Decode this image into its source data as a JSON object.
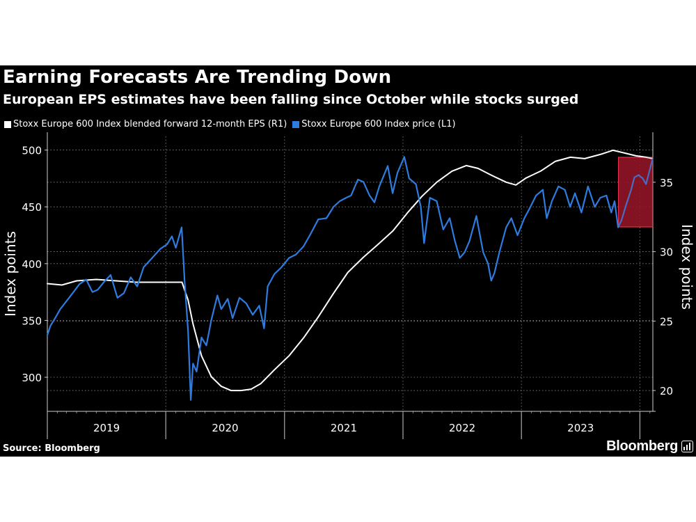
{
  "header": {
    "title": "Earning Forecasts Are Trending Down",
    "subtitle": "European EPS estimates have been falling since October while stocks surged"
  },
  "legend": {
    "items": [
      {
        "label": "Stoxx Europe 600 Index blended forward 12-month EPS (R1)",
        "color": "#ffffff"
      },
      {
        "label": "Stoxx Europe 600 Index price (L1)",
        "color": "#2e7ce0"
      }
    ]
  },
  "footer": {
    "source": "Source: Bloomberg",
    "brand": "Bloomberg",
    "brand_icon": "bar-chart-logo-icon"
  },
  "colors": {
    "background": "#000000",
    "eps_line": "#ffffff",
    "price_line": "#2e7ce0",
    "highlight_fill": "#8b1022",
    "highlight_border": "#e8324a",
    "grid": "#8a8a8a"
  },
  "chart_data": {
    "type": "line",
    "title": "Earning Forecasts Are Trending Down",
    "subtitle": "European EPS estimates have been falling since October while stocks surged",
    "x_axis": {
      "type": "date",
      "range": [
        "2019-01-01",
        "2024-02-10"
      ],
      "tick_labels": [
        "2019",
        "2020",
        "2021",
        "2022",
        "2023"
      ]
    },
    "y_left": {
      "label": "Index points",
      "ticks": [
        300,
        350,
        400,
        450,
        500
      ],
      "range": [
        270,
        512
      ]
    },
    "y_right": {
      "label": "Index points",
      "ticks": [
        20,
        25,
        30,
        35
      ],
      "range": [
        18.5,
        38.3
      ]
    },
    "grid": "dotted",
    "legend_position": "top-left",
    "highlight": {
      "from": "2023-10-27",
      "to": "2024-02-09"
    },
    "series": [
      {
        "name": "Stoxx Europe 600 Index blended forward 12-month EPS (R1)",
        "axis": "right",
        "color": "#ffffff",
        "points": [
          [
            "2019-01-01",
            27.7
          ],
          [
            "2019-02-15",
            27.6
          ],
          [
            "2019-04-01",
            27.9
          ],
          [
            "2019-06-01",
            28.0
          ],
          [
            "2019-08-01",
            27.9
          ],
          [
            "2019-10-01",
            27.8
          ],
          [
            "2019-12-01",
            27.8
          ],
          [
            "2020-01-15",
            27.8
          ],
          [
            "2020-02-20",
            27.8
          ],
          [
            "2020-03-10",
            26.5
          ],
          [
            "2020-03-25",
            24.8
          ],
          [
            "2020-04-20",
            22.5
          ],
          [
            "2020-05-20",
            21.0
          ],
          [
            "2020-06-20",
            20.3
          ],
          [
            "2020-07-20",
            20.0
          ],
          [
            "2020-08-20",
            20.0
          ],
          [
            "2020-09-20",
            20.1
          ],
          [
            "2020-10-20",
            20.5
          ],
          [
            "2020-12-01",
            21.5
          ],
          [
            "2021-01-15",
            22.5
          ],
          [
            "2021-03-01",
            23.8
          ],
          [
            "2021-04-15",
            25.3
          ],
          [
            "2021-06-01",
            27.0
          ],
          [
            "2021-07-15",
            28.5
          ],
          [
            "2021-09-01",
            29.6
          ],
          [
            "2021-10-15",
            30.5
          ],
          [
            "2021-12-01",
            31.5
          ],
          [
            "2022-01-15",
            32.8
          ],
          [
            "2022-03-01",
            34.0
          ],
          [
            "2022-04-15",
            35.0
          ],
          [
            "2022-06-01",
            35.8
          ],
          [
            "2022-07-15",
            36.2
          ],
          [
            "2022-08-20",
            36.0
          ],
          [
            "2022-10-01",
            35.5
          ],
          [
            "2022-11-15",
            35.0
          ],
          [
            "2022-12-15",
            34.8
          ],
          [
            "2023-01-15",
            35.3
          ],
          [
            "2023-03-01",
            35.8
          ],
          [
            "2023-04-15",
            36.5
          ],
          [
            "2023-06-01",
            36.8
          ],
          [
            "2023-07-15",
            36.7
          ],
          [
            "2023-09-01",
            37.0
          ],
          [
            "2023-10-10",
            37.3
          ],
          [
            "2023-11-15",
            37.1
          ],
          [
            "2023-12-20",
            36.9
          ],
          [
            "2024-01-20",
            36.8
          ],
          [
            "2024-02-09",
            36.7
          ]
        ]
      },
      {
        "name": "Stoxx Europe 600 Index price (L1)",
        "axis": "left",
        "color": "#2e7ce0",
        "points": [
          [
            "2019-01-01",
            337
          ],
          [
            "2019-01-10",
            345
          ],
          [
            "2019-01-25",
            352
          ],
          [
            "2019-02-10",
            360
          ],
          [
            "2019-03-01",
            367
          ],
          [
            "2019-03-20",
            374
          ],
          [
            "2019-04-10",
            382
          ],
          [
            "2019-05-01",
            386
          ],
          [
            "2019-05-20",
            375
          ],
          [
            "2019-06-05",
            377
          ],
          [
            "2019-06-25",
            384
          ],
          [
            "2019-07-15",
            390
          ],
          [
            "2019-08-05",
            370
          ],
          [
            "2019-08-25",
            374
          ],
          [
            "2019-09-15",
            388
          ],
          [
            "2019-10-05",
            380
          ],
          [
            "2019-10-25",
            397
          ],
          [
            "2019-11-20",
            405
          ],
          [
            "2019-12-15",
            413
          ],
          [
            "2020-01-05",
            417
          ],
          [
            "2020-01-20",
            424
          ],
          [
            "2020-02-01",
            414
          ],
          [
            "2020-02-19",
            432
          ],
          [
            "2020-02-28",
            385
          ],
          [
            "2020-03-10",
            340
          ],
          [
            "2020-03-18",
            280
          ],
          [
            "2020-03-25",
            312
          ],
          [
            "2020-04-05",
            305
          ],
          [
            "2020-04-20",
            335
          ],
          [
            "2020-05-05",
            328
          ],
          [
            "2020-05-20",
            350
          ],
          [
            "2020-06-08",
            372
          ],
          [
            "2020-06-20",
            360
          ],
          [
            "2020-07-10",
            369
          ],
          [
            "2020-07-25",
            352
          ],
          [
            "2020-08-15",
            370
          ],
          [
            "2020-09-05",
            365
          ],
          [
            "2020-09-25",
            355
          ],
          [
            "2020-10-15",
            363
          ],
          [
            "2020-10-30",
            343
          ],
          [
            "2020-11-10",
            380
          ],
          [
            "2020-12-01",
            391
          ],
          [
            "2020-12-20",
            396
          ],
          [
            "2021-01-15",
            405
          ],
          [
            "2021-02-05",
            408
          ],
          [
            "2021-02-28",
            415
          ],
          [
            "2021-03-20",
            425
          ],
          [
            "2021-04-15",
            439
          ],
          [
            "2021-05-10",
            440
          ],
          [
            "2021-06-01",
            450
          ],
          [
            "2021-06-20",
            455
          ],
          [
            "2021-07-10",
            458
          ],
          [
            "2021-07-25",
            460
          ],
          [
            "2021-08-15",
            474
          ],
          [
            "2021-09-01",
            472
          ],
          [
            "2021-09-20",
            460
          ],
          [
            "2021-10-05",
            454
          ],
          [
            "2021-10-20",
            468
          ],
          [
            "2021-11-15",
            486
          ],
          [
            "2021-11-30",
            462
          ],
          [
            "2021-12-15",
            480
          ],
          [
            "2022-01-05",
            494
          ],
          [
            "2022-01-20",
            475
          ],
          [
            "2022-02-10",
            470
          ],
          [
            "2022-02-25",
            450
          ],
          [
            "2022-03-07",
            418
          ],
          [
            "2022-03-25",
            458
          ],
          [
            "2022-04-15",
            455
          ],
          [
            "2022-05-05",
            430
          ],
          [
            "2022-05-25",
            440
          ],
          [
            "2022-06-10",
            420
          ],
          [
            "2022-06-25",
            405
          ],
          [
            "2022-07-10",
            410
          ],
          [
            "2022-07-25",
            420
          ],
          [
            "2022-08-15",
            442
          ],
          [
            "2022-09-05",
            410
          ],
          [
            "2022-09-20",
            400
          ],
          [
            "2022-09-30",
            385
          ],
          [
            "2022-10-10",
            392
          ],
          [
            "2022-10-25",
            410
          ],
          [
            "2022-11-15",
            432
          ],
          [
            "2022-12-01",
            440
          ],
          [
            "2022-12-20",
            425
          ],
          [
            "2023-01-10",
            440
          ],
          [
            "2023-01-25",
            448
          ],
          [
            "2023-02-15",
            460
          ],
          [
            "2023-03-08",
            465
          ],
          [
            "2023-03-20",
            440
          ],
          [
            "2023-04-05",
            455
          ],
          [
            "2023-04-25",
            468
          ],
          [
            "2023-05-15",
            465
          ],
          [
            "2023-05-31",
            450
          ],
          [
            "2023-06-15",
            462
          ],
          [
            "2023-07-05",
            445
          ],
          [
            "2023-07-25",
            468
          ],
          [
            "2023-08-15",
            450
          ],
          [
            "2023-09-01",
            458
          ],
          [
            "2023-09-20",
            460
          ],
          [
            "2023-10-05",
            445
          ],
          [
            "2023-10-15",
            455
          ],
          [
            "2023-10-26",
            432
          ],
          [
            "2023-11-05",
            438
          ],
          [
            "2023-11-20",
            452
          ],
          [
            "2023-12-05",
            465
          ],
          [
            "2023-12-15",
            476
          ],
          [
            "2023-12-28",
            478
          ],
          [
            "2024-01-10",
            475
          ],
          [
            "2024-01-20",
            470
          ],
          [
            "2024-01-31",
            482
          ],
          [
            "2024-02-09",
            492
          ]
        ]
      }
    ]
  }
}
